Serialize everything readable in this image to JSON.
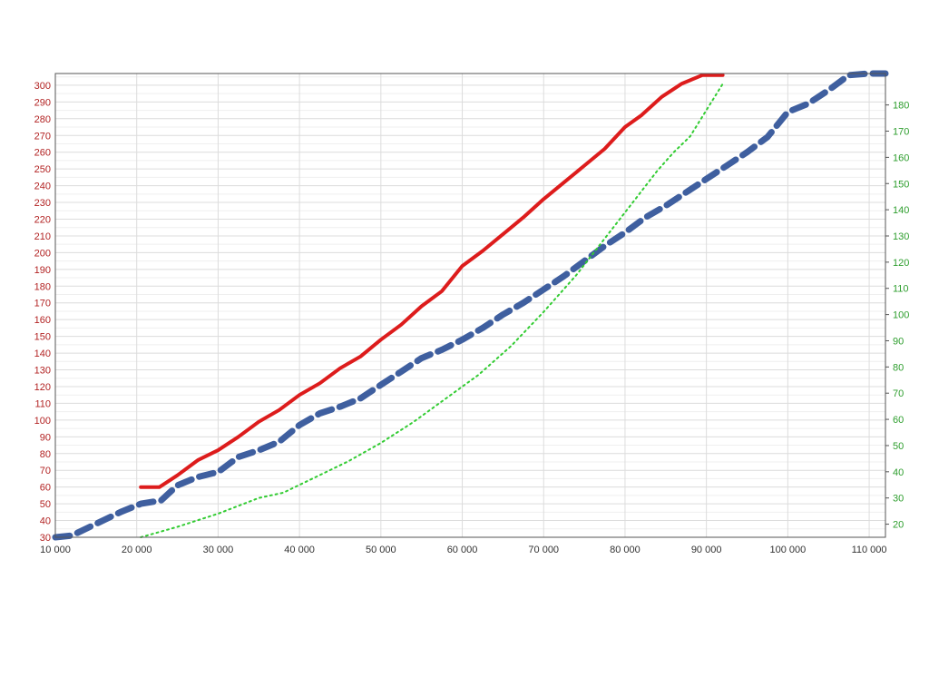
{
  "chart_data": {
    "type": "line",
    "title": "",
    "xlabel": "",
    "ylabel": "",
    "y2label": "",
    "xlim": [
      10000,
      112000
    ],
    "ylim": [
      30,
      307
    ],
    "y2lim": [
      15,
      192
    ],
    "x_ticks": [
      10000,
      20000,
      30000,
      40000,
      50000,
      60000,
      70000,
      80000,
      90000,
      100000,
      110000
    ],
    "x_tick_labels": [
      "10 000",
      "20 000",
      "30 000",
      "40 000",
      "50 000",
      "60 000",
      "70 000",
      "80 000",
      "90 000",
      "100 000",
      "110 000"
    ],
    "y_ticks": [
      30,
      40,
      50,
      60,
      70,
      80,
      90,
      100,
      110,
      120,
      130,
      140,
      150,
      160,
      170,
      180,
      190,
      200,
      210,
      220,
      230,
      240,
      250,
      260,
      270,
      280,
      290,
      300
    ],
    "y2_ticks": [
      20,
      30,
      40,
      50,
      60,
      70,
      80,
      90,
      100,
      110,
      120,
      130,
      140,
      150,
      160,
      170,
      180
    ],
    "grid": true,
    "colors": {
      "left_axis": "#b22222",
      "right_axis": "#2e9e2e",
      "x_axis": "#333333",
      "grid": "#dcdcdc"
    },
    "series": [
      {
        "axis": "left",
        "color": "#dd1c1c",
        "style": "solid",
        "x": [
          20500,
          22800,
          25000,
          27500,
          30000,
          32500,
          35000,
          37500,
          40000,
          42500,
          45000,
          47500,
          50000,
          52500,
          55000,
          57500,
          60000,
          62500,
          65000,
          67500,
          70000,
          72500,
          75000,
          77500,
          80000,
          82000,
          84500,
          87000,
          89500,
          92000
        ],
        "y": [
          60,
          60,
          67,
          76,
          82,
          90,
          99,
          106,
          115,
          122,
          131,
          138,
          148,
          157,
          168,
          177,
          192,
          201,
          211,
          221,
          232,
          242,
          252,
          262,
          275,
          282,
          293,
          301,
          306,
          306
        ]
      },
      {
        "axis": "left",
        "color": "#3f5f9f",
        "style": "dashed",
        "x": [
          10000,
          12000,
          15000,
          18000,
          20500,
          23000,
          25000,
          27500,
          30000,
          32500,
          35000,
          37500,
          40000,
          42500,
          45000,
          47500,
          50000,
          52500,
          55000,
          57500,
          60000,
          62500,
          65000,
          67500,
          70000,
          72500,
          75000,
          77500,
          80000,
          82500,
          85000,
          87500,
          90000,
          92500,
          95000,
          97500,
          100000,
          102500,
          105000,
          107500,
          110000,
          112000
        ],
        "y": [
          30,
          31,
          38,
          45,
          50,
          52,
          61,
          66,
          69,
          78,
          82,
          87,
          97,
          104,
          108,
          113,
          121,
          129,
          137,
          142,
          148,
          155,
          163,
          170,
          178,
          186,
          195,
          204,
          212,
          221,
          228,
          236,
          244,
          252,
          260,
          269,
          284,
          289,
          297,
          306,
          307,
          307
        ]
      },
      {
        "axis": "right",
        "color": "#33cc33",
        "style": "dotted",
        "x": [
          20500,
          25000,
          30000,
          35000,
          38000,
          42000,
          46000,
          50000,
          54000,
          58000,
          62000,
          66000,
          70000,
          74000,
          78000,
          81000,
          84000,
          86000,
          88000,
          90000,
          92000
        ],
        "y": [
          15,
          19,
          24,
          30,
          32,
          38,
          44,
          51,
          59,
          68,
          77,
          88,
          101,
          115,
          131,
          143,
          155,
          162,
          168,
          178,
          188
        ]
      }
    ]
  }
}
